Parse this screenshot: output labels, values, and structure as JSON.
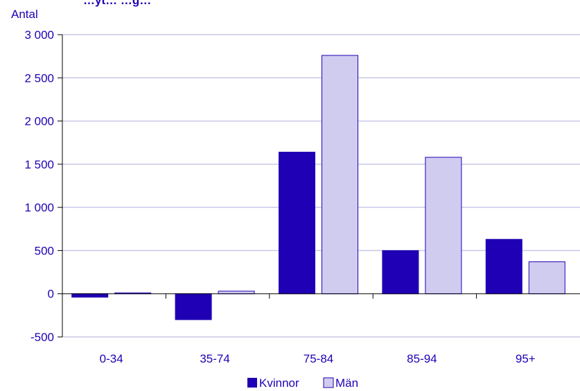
{
  "chart_data": {
    "type": "bar",
    "title": "…yt… …g…",
    "ylabel": "Antal",
    "xlabel": "",
    "categories": [
      "0-34",
      "35-74",
      "75-84",
      "85-94",
      "95+"
    ],
    "series": [
      {
        "name": "Kvinnor",
        "values": [
          -40,
          -300,
          1640,
          500,
          630
        ],
        "color": "#1f00b4"
      },
      {
        "name": "Män",
        "values": [
          10,
          30,
          2760,
          1580,
          370
        ],
        "color": "#d0ccf0"
      }
    ],
    "ylim": [
      -500,
      3000
    ],
    "yticks": [
      -500,
      0,
      500,
      1000,
      1500,
      2000,
      2500,
      3000
    ],
    "ytick_labels": [
      "-500",
      "0",
      "500",
      "1 000",
      "1 500",
      "2 000",
      "2 500",
      "3 000"
    ],
    "grid": true,
    "legend_position": "bottom",
    "colors": {
      "text": "#1f00b4",
      "grid": "#c8c8e6",
      "axis": "#000000"
    }
  }
}
